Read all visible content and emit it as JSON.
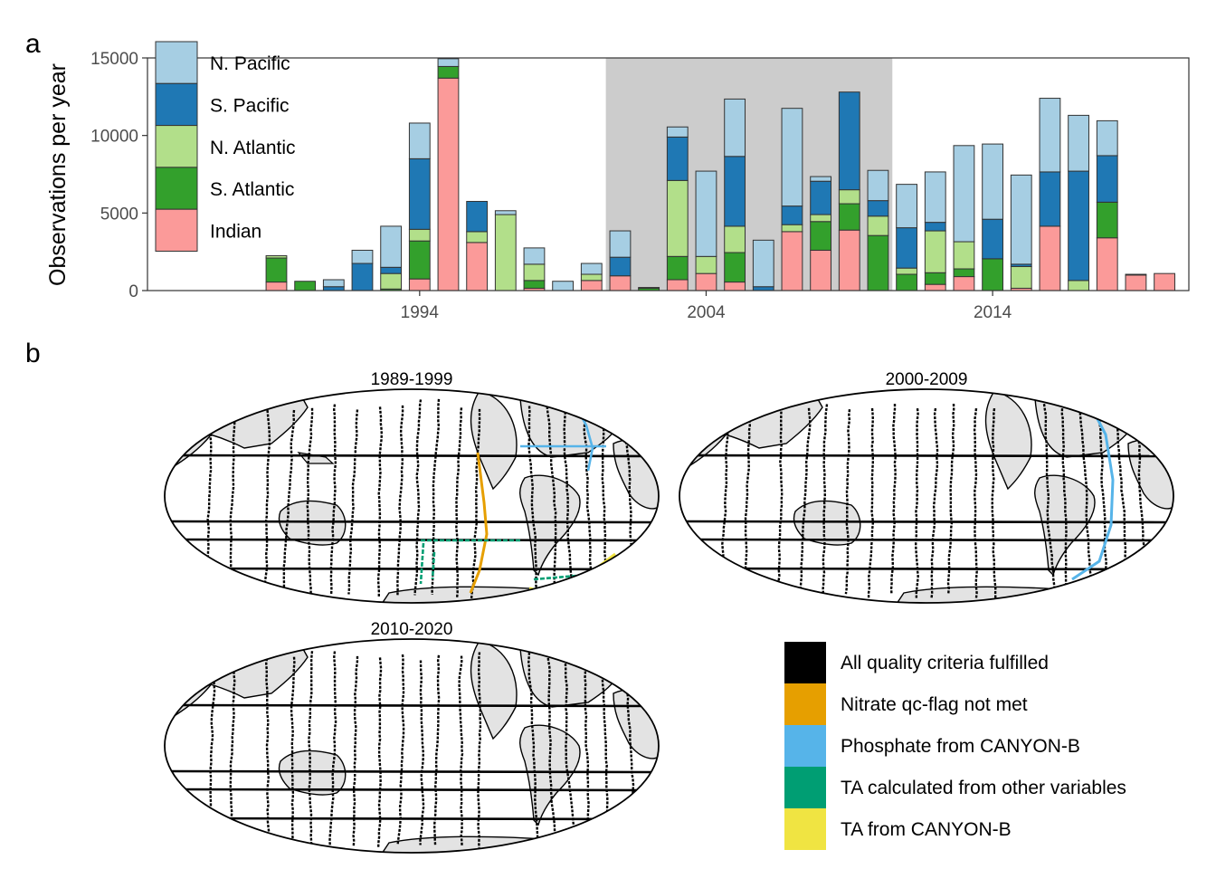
{
  "panel_a_label": "a",
  "panel_b_label": "b",
  "chart_data": [
    {
      "type": "bar",
      "stacked": true,
      "ylabel": "Observations per year",
      "xlabel": "",
      "ylim": [
        0,
        15000
      ],
      "yticks": [
        0,
        5000,
        10000,
        15000
      ],
      "xticks": [
        1994,
        2004,
        2014
      ],
      "highlight_period": [
        2001,
        2010
      ],
      "grid": false,
      "legend_position": "top-left",
      "categories": [
        1989,
        1990,
        1991,
        1992,
        1993,
        1994,
        1995,
        1996,
        1997,
        1998,
        1999,
        2000,
        2001,
        2002,
        2003,
        2004,
        2005,
        2006,
        2007,
        2008,
        2009,
        2010,
        2011,
        2012,
        2013,
        2014,
        2015,
        2016,
        2017,
        2018,
        2019,
        2020
      ],
      "series": [
        {
          "name": "Indian",
          "color": "#fb9a99",
          "values": [
            550,
            0,
            0,
            0,
            0,
            750,
            13700,
            3100,
            0,
            150,
            0,
            650,
            950,
            0,
            700,
            1100,
            550,
            0,
            3800,
            2600,
            3900,
            0,
            0,
            400,
            900,
            0,
            150,
            4150,
            0,
            3400,
            1000,
            1100
          ]
        },
        {
          "name": "S. Atlantic",
          "color": "#33a02c",
          "values": [
            1550,
            600,
            0,
            0,
            100,
            2450,
            750,
            0,
            0,
            500,
            0,
            0,
            0,
            150,
            1500,
            0,
            1900,
            0,
            0,
            1850,
            1700,
            3550,
            1050,
            750,
            500,
            2050,
            0,
            0,
            0,
            2300,
            0,
            0
          ]
        },
        {
          "name": "N. Atlantic",
          "color": "#b2df8a",
          "values": [
            150,
            0,
            0,
            0,
            1000,
            750,
            0,
            700,
            4900,
            1050,
            0,
            400,
            0,
            0,
            4900,
            1100,
            1700,
            0,
            450,
            450,
            900,
            1250,
            400,
            2700,
            1750,
            0,
            1400,
            0,
            650,
            0,
            0,
            0
          ]
        },
        {
          "name": "S. Pacific",
          "color": "#1f78b4",
          "values": [
            0,
            0,
            250,
            1750,
            400,
            4550,
            0,
            1950,
            0,
            0,
            0,
            0,
            1200,
            0,
            2800,
            0,
            4500,
            250,
            1200,
            2150,
            6300,
            1000,
            2600,
            550,
            0,
            2550,
            150,
            3500,
            7050,
            3000,
            0,
            0
          ]
        },
        {
          "name": "N. Pacific",
          "color": "#a6cee3",
          "values": [
            0,
            0,
            450,
            850,
            2650,
            2300,
            500,
            0,
            250,
            1050,
            600,
            700,
            1700,
            50,
            650,
            5500,
            3700,
            3000,
            6300,
            300,
            0,
            1950,
            2800,
            3250,
            6200,
            4850,
            5750,
            4750,
            3600,
            2250,
            50,
            0
          ]
        }
      ]
    }
  ],
  "maps": [
    {
      "title": "1989-1999"
    },
    {
      "title": "2000-2009"
    },
    {
      "title": "2010-2020"
    }
  ],
  "legend_b": [
    {
      "label": "All quality criteria fulfilled",
      "color": "#000000"
    },
    {
      "label": "Nitrate qc-flag not met",
      "color": "#e69f00"
    },
    {
      "label": "Phosphate from CANYON-B",
      "color": "#56b4e9"
    },
    {
      "label": "TA calculated from other variables",
      "color": "#009e73"
    },
    {
      "label": "TA from CANYON-B",
      "color": "#f0e442"
    }
  ],
  "colors": {
    "land": "#e3e3e3",
    "highlight": "#cccccc",
    "frame": "#333333"
  }
}
